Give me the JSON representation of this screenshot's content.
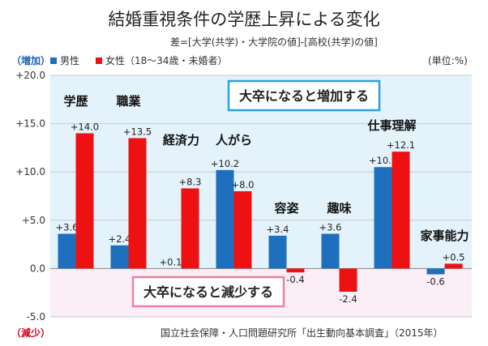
{
  "title": "結婚重視条件の学歴上昇による変化",
  "subtitle": "差=[大学(共学)・大学院の値]-[高校(共学)の値]",
  "legend": {
    "male": "男性",
    "female": "女性（18〜34歳・未婚者）"
  },
  "unit": "(単位:%)",
  "increase_label": "（増加）",
  "decrease_label": "（減少）",
  "annotation_up": "大卒になると増加する",
  "annotation_down": "大卒になると減少する",
  "source": "国立社会保障・人口問題研究所「出生動向基本調査」（2015年）",
  "colors": {
    "male": "#1f6fbf",
    "female": "#ee1111",
    "up_bg": "#e4f3fb",
    "down_bg": "#fbeef7",
    "up_box": "#29a3e0",
    "down_box": "#ee7fa6"
  },
  "chart_data": {
    "type": "bar",
    "categories": [
      "学歴",
      "職業",
      "経済力",
      "人がら",
      "容姿",
      "趣味",
      "仕事理解",
      "家事能力"
    ],
    "series": [
      {
        "name": "男性",
        "values": [
          3.6,
          2.4,
          null,
          10.2,
          3.4,
          3.6,
          10.5,
          -0.6
        ],
        "labels": [
          "+3.6",
          "+2.4",
          "",
          "+10.2",
          "+3.4",
          "+3.6",
          "+10.5",
          "-0.6"
        ]
      },
      {
        "name": "女性（18〜34歳・未婚者）",
        "values": [
          14.0,
          13.5,
          8.3,
          8.0,
          -0.4,
          -2.4,
          12.1,
          0.5
        ],
        "labels": [
          "+14.0",
          "+13.5",
          "+8.3",
          "+8.0",
          "-0.4",
          "-2.4",
          "+12.1",
          "+0.5"
        ]
      }
    ],
    "extra_labels": [
      {
        "category": "経済力",
        "text": "+0.1"
      }
    ],
    "ylim": [
      -5,
      20
    ],
    "yticks": [
      "+20.0",
      "+15.0",
      "+10.0",
      "+5.0",
      "0.0",
      "-5.0"
    ],
    "ytick_values": [
      20,
      15,
      10,
      5,
      0,
      -5
    ]
  }
}
